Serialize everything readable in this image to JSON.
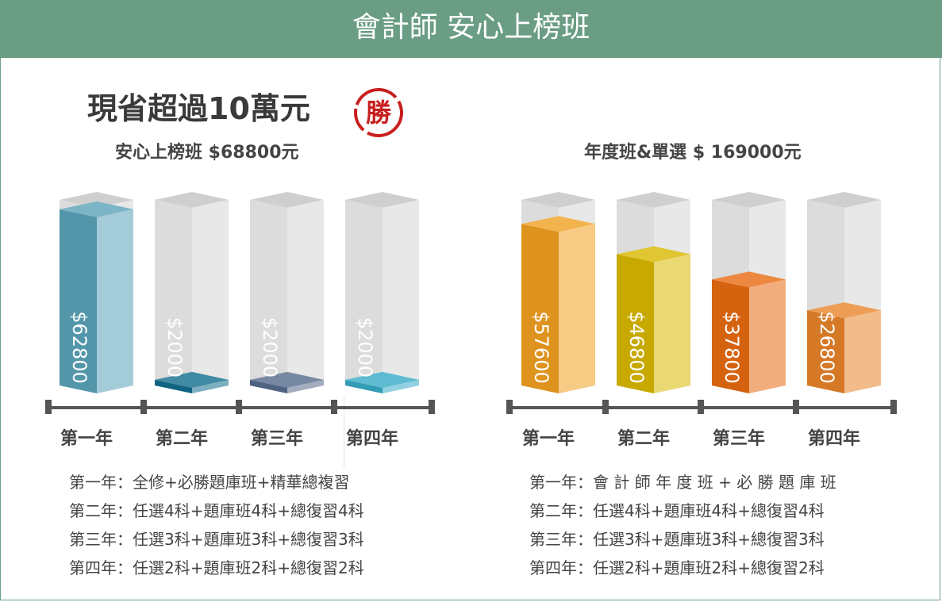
{
  "header": {
    "title": "會計師 安心上榜班"
  },
  "headline": {
    "text": "現省超過10萬元",
    "seal_text": "勝"
  },
  "chart_data": [
    {
      "type": "bar",
      "title": "安心上榜班 $68800元",
      "categories": [
        "第一年",
        "第二年",
        "第三年",
        "第四年"
      ],
      "values": [
        62800,
        2000,
        2000,
        2000
      ],
      "labels": [
        "$62800",
        "$2000",
        "$2000",
        "$2000"
      ],
      "colors": [
        "#5aa3b8",
        "#116d8c",
        "#556a8c",
        "#36aac6"
      ],
      "ylim": [
        0,
        69000
      ],
      "grid": false,
      "notes": [
        "第一年：全修+必勝題庫班+精華總複習",
        "第二年：任選4科+題庫班4科+總復習4科",
        "第三年：任選3科+題庫班3科+總復習3科",
        "第四年：任選2科+題庫班2科+總復習2科"
      ]
    },
    {
      "type": "bar",
      "title": "年度班&單選 $ 169000元",
      "categories": [
        "第一年",
        "第二年",
        "第三年",
        "第四年"
      ],
      "values": [
        57600,
        46800,
        37800,
        26800
      ],
      "labels": [
        "$57600",
        "$46800",
        "$37800",
        "$26800"
      ],
      "colors": [
        "#f0a020",
        "#d8b800",
        "#e86a10",
        "#e8842a"
      ],
      "ylim": [
        0,
        69000
      ],
      "grid": false,
      "notes": [
        "第一年：會 計 師 年 度 班 + 必 勝 題 庫 班",
        "第二年：任選4科+題庫班4科+總復習4科",
        "第三年：任選3科+題庫班3科+總復習3科",
        "第四年：任選2科+題庫班2科+總復習2科"
      ]
    }
  ]
}
